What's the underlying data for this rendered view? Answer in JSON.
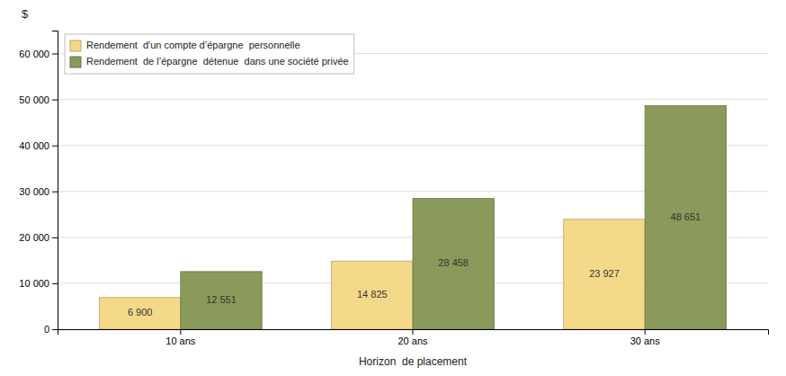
{
  "chart_data": {
    "type": "bar",
    "categories": [
      "10 ans",
      "20 ans",
      "30 ans"
    ],
    "series": [
      {
        "name": "Rendement  d'un compte d’épargne  personnelle",
        "color": "#F5D98B",
        "values": [
          6900,
          14825,
          23927
        ],
        "value_labels": [
          "6 900",
          "14 825",
          "23 927"
        ]
      },
      {
        "name": "Rendement  de l’épargne  détenue  dans une société privée",
        "color": "#8A9A5B",
        "values": [
          12551,
          28458,
          48651
        ],
        "value_labels": [
          "12 551",
          "28 458",
          "48 651"
        ]
      }
    ],
    "xlabel": "Horizon  de placement",
    "ylabel": "$",
    "ylim": [
      0,
      65000
    ],
    "yticks": [
      0,
      {
        "value": 10000,
        "label": "10 000"
      },
      {
        "value": 20000,
        "label": "20 000"
      },
      {
        "value": 30000,
        "label": "30 000"
      },
      {
        "value": 40000,
        "label": "40 000"
      },
      {
        "value": 50000,
        "label": "50 000"
      },
      {
        "value": 60000,
        "label": "60 000"
      }
    ],
    "grid": true,
    "data_labels": true,
    "legend": "upper left"
  }
}
